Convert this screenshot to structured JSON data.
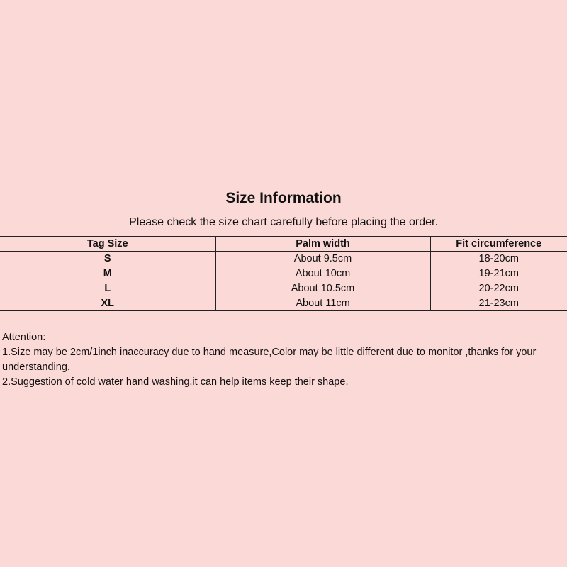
{
  "title": "Size Information",
  "subtitle": "Please check the size chart carefully before placing the order.",
  "table": {
    "headers": [
      "Tag Size",
      "Palm width",
      "Fit circumference"
    ],
    "rows": [
      [
        "S",
        "About 9.5cm",
        "18-20cm"
      ],
      [
        "M",
        "About 10cm",
        "19-21cm"
      ],
      [
        "L",
        "About 10.5cm",
        "20-22cm"
      ],
      [
        "XL",
        "About 11cm",
        "21-23cm"
      ]
    ]
  },
  "notes": {
    "heading": "Attention:",
    "items": [
      "1.Size may be 2cm/1inch inaccuracy due to hand measure,Color may be little different due to monitor ,thanks for your understanding.",
      "2.Suggestion of cold water hand washing,it can help items keep their shape."
    ]
  },
  "colors": {
    "background": "#fbd9d7",
    "text": "#111111"
  }
}
